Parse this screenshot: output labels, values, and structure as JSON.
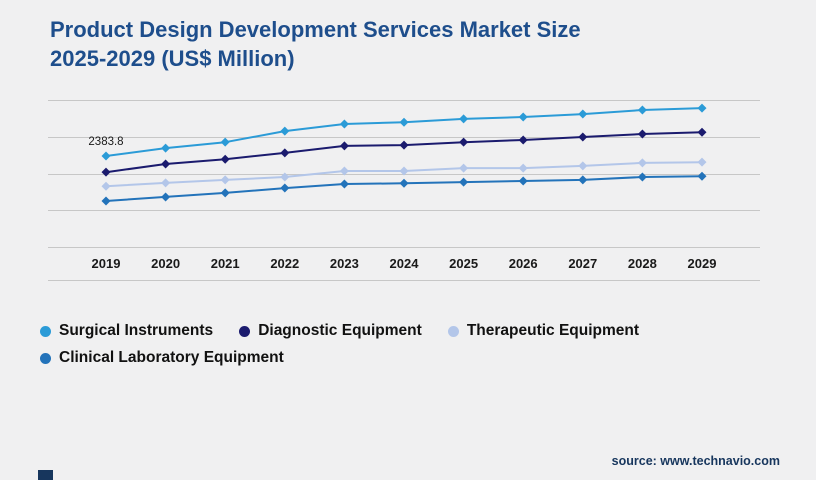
{
  "title": {
    "line1": "Product Design Development Services Market Size",
    "line2": "2025-2029 (US$ Million)"
  },
  "source": {
    "label": "source: www.technavio.com"
  },
  "colors": {
    "title": "#1e4e8c",
    "grid": "#c7c7c7",
    "background": "#f0f0f1",
    "axis_text": "#1a1a1a",
    "legend_text": "#111111",
    "brand_navy": "#17365d"
  },
  "chart_data": {
    "type": "line",
    "title": "Product Design Development Services Market Size 2025-2029 (US$ Million)",
    "xlabel": "",
    "ylabel": "",
    "x": [
      2019,
      2020,
      2021,
      2022,
      2023,
      2024,
      2025,
      2026,
      2027,
      2028,
      2029
    ],
    "series": [
      {
        "name": "Surgical Instruments",
        "color": "#2b9bd7",
        "values": [
          2383.8,
          2490,
          2570,
          2720,
          2815,
          2840,
          2885,
          2910,
          2950,
          3005,
          3030
        ]
      },
      {
        "name": "Diagnostic Equipment",
        "color": "#1b1b6e",
        "values": [
          2165,
          2275,
          2340,
          2425,
          2520,
          2530,
          2570,
          2600,
          2640,
          2680,
          2705
        ]
      },
      {
        "name": "Therapeutic Equipment",
        "color": "#b3c6e9",
        "values": [
          1975,
          2020,
          2060,
          2100,
          2180,
          2180,
          2220,
          2220,
          2250,
          2290,
          2300
        ]
      },
      {
        "name": "Clinical Laboratory Equipment",
        "color": "#2373ba",
        "values": [
          1775,
          1830,
          1885,
          1950,
          2005,
          2015,
          2030,
          2045,
          2060,
          2100,
          2110
        ]
      }
    ],
    "ylim": [
      1140,
      3140
    ],
    "grid": true,
    "gridlines": 5,
    "marker": "diamond",
    "legend_position": "bottom-left",
    "annotation": {
      "series_index": 0,
      "x_index": 0,
      "label": "2383.8"
    }
  }
}
